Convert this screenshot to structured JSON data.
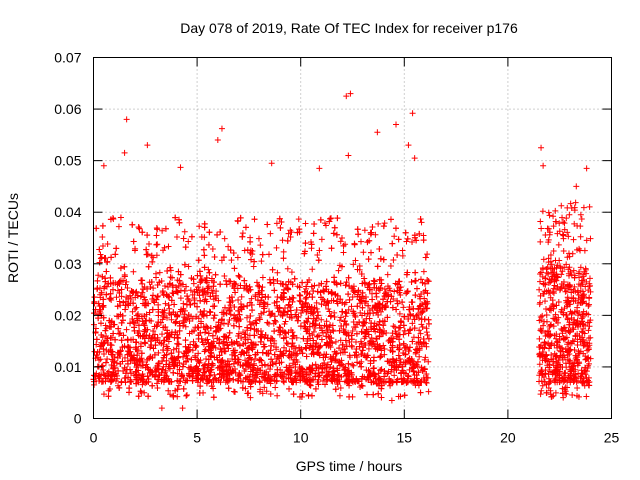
{
  "chart_data": {
    "type": "scatter",
    "title": "Day 078 of 2019, Rate Of TEC Index for receiver p176",
    "xlabel": "GPS time / hours",
    "ylabel": "ROTI / TECUs",
    "xlim": [
      0,
      25
    ],
    "ylim": [
      0,
      0.07
    ],
    "xticks": [
      0,
      5,
      10,
      15,
      20,
      25
    ],
    "xtick_labels": [
      "0",
      "5",
      "10",
      "15",
      "20",
      "25"
    ],
    "yticks": [
      0,
      0.01,
      0.02,
      0.03,
      0.04,
      0.05,
      0.06,
      0.07
    ],
    "ytick_labels": [
      "0",
      "0.01",
      "0.02",
      "0.03",
      "0.04",
      "0.05",
      "0.06",
      "0.07"
    ],
    "grid": true,
    "marker": "+",
    "color": "#ff0000",
    "segments": [
      {
        "x_start": 0.0,
        "x_end": 16.2,
        "typical_range": [
          0.007,
          0.027
        ]
      },
      {
        "x_start": 21.5,
        "x_end": 24.0,
        "typical_range": [
          0.007,
          0.03
        ]
      }
    ],
    "notable_points": [
      {
        "x": 1.6,
        "y": 0.058
      },
      {
        "x": 0.5,
        "y": 0.049
      },
      {
        "x": 1.5,
        "y": 0.0515
      },
      {
        "x": 2.6,
        "y": 0.053
      },
      {
        "x": 4.2,
        "y": 0.0487
      },
      {
        "x": 6.2,
        "y": 0.0562
      },
      {
        "x": 6.0,
        "y": 0.054
      },
      {
        "x": 8.6,
        "y": 0.0495
      },
      {
        "x": 12.2,
        "y": 0.0625
      },
      {
        "x": 12.4,
        "y": 0.063
      },
      {
        "x": 12.3,
        "y": 0.051
      },
      {
        "x": 10.9,
        "y": 0.0485
      },
      {
        "x": 13.7,
        "y": 0.0555
      },
      {
        "x": 14.6,
        "y": 0.057
      },
      {
        "x": 15.4,
        "y": 0.0592
      },
      {
        "x": 15.2,
        "y": 0.053
      },
      {
        "x": 15.5,
        "y": 0.0505
      },
      {
        "x": 3.3,
        "y": 0.002
      },
      {
        "x": 4.3,
        "y": 0.002
      },
      {
        "x": 14.4,
        "y": 0.0035
      },
      {
        "x": 21.6,
        "y": 0.0525
      },
      {
        "x": 21.7,
        "y": 0.049
      },
      {
        "x": 23.3,
        "y": 0.045
      },
      {
        "x": 23.8,
        "y": 0.0485
      }
    ]
  }
}
